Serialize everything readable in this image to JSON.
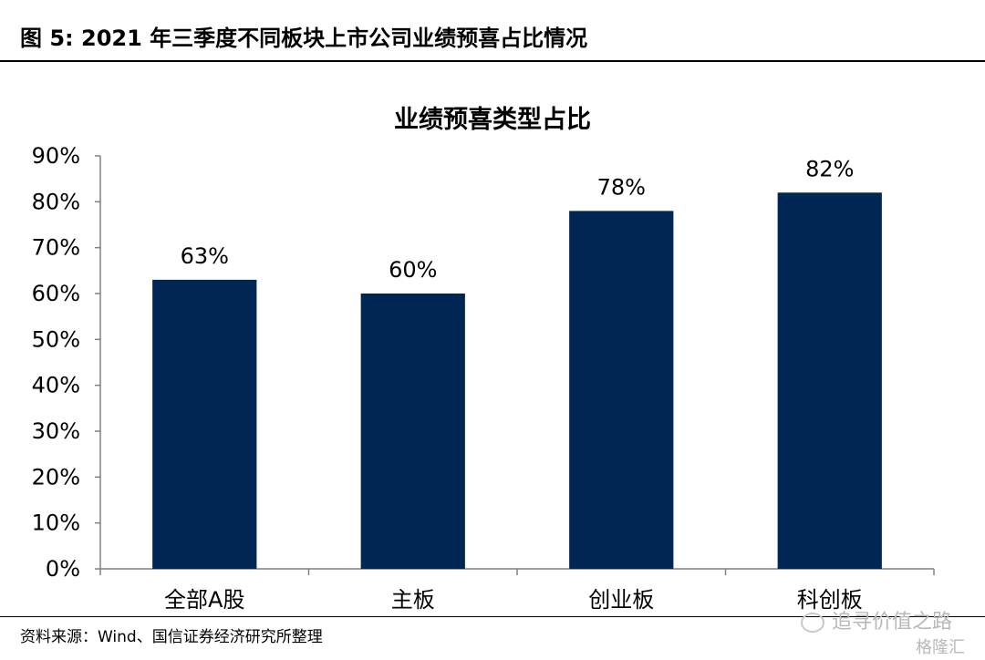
{
  "figure": {
    "label": "图  5:  2021 年三季度不同板块上市公司业绩预喜占比情况",
    "source": "资料来源：Wind、国信证券经济研究所整理",
    "watermark": "追寻价值之路",
    "watermark_logo": "格隆汇"
  },
  "colors": {
    "bar": "#002754",
    "axis": "#808080",
    "text": "#000000"
  },
  "chart_data": {
    "type": "bar",
    "title": "业绩预喜类型占比",
    "categories": [
      "全部A股",
      "主板",
      "创业板",
      "科创板"
    ],
    "values": [
      63,
      60,
      78,
      82
    ],
    "value_labels": [
      "63%",
      "60%",
      "78%",
      "82%"
    ],
    "ylim": [
      0,
      90
    ],
    "yticks": [
      0,
      10,
      20,
      30,
      40,
      50,
      60,
      70,
      80,
      90
    ],
    "ytick_labels": [
      "0%",
      "10%",
      "20%",
      "30%",
      "40%",
      "50%",
      "60%",
      "70%",
      "80%",
      "90%"
    ],
    "xlabel": "",
    "ylabel": "",
    "grid": false,
    "legend": "none"
  }
}
